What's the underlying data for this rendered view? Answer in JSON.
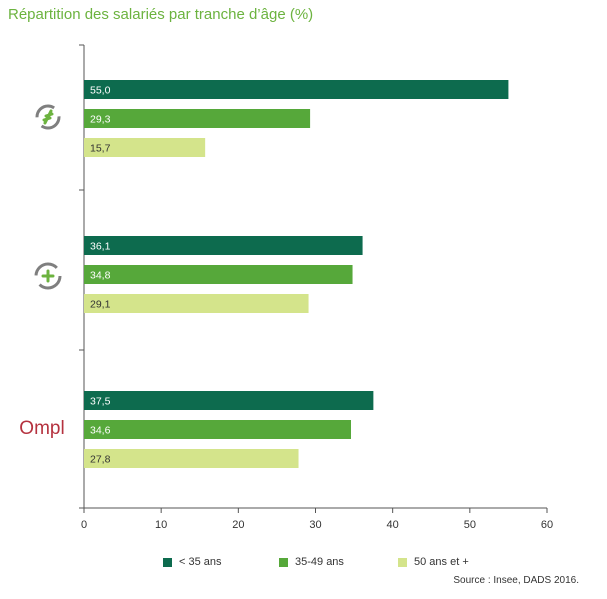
{
  "chart_data": {
    "type": "bar",
    "orientation": "horizontal",
    "title": "Répartition des salariés par tranche d’âge (%)",
    "categories": [
      "logo-recycle",
      "logo-plus",
      "Ompl"
    ],
    "series": [
      {
        "name": "< 35 ans",
        "color": "#0d6b4e",
        "values": [
          55.0,
          36.1,
          37.5
        ],
        "labels": [
          "55,0",
          "36,1",
          "37,5"
        ]
      },
      {
        "name": "35-49 ans",
        "color": "#56a83a",
        "values": [
          29.3,
          34.8,
          34.6
        ],
        "labels": [
          "29,3",
          "34,8",
          "34,6"
        ]
      },
      {
        "name": "50 ans et +",
        "color": "#d4e48b",
        "values": [
          15.7,
          29.1,
          27.8
        ],
        "labels": [
          "15,7",
          "29,1",
          "27,8"
        ]
      }
    ],
    "xlim": [
      0,
      60
    ],
    "x_ticks": [
      "0",
      "10",
      "20",
      "30",
      "40",
      "50",
      "60"
    ],
    "grid": false,
    "legend_position": "bottom",
    "source": "Source : Insee, DADS 2016."
  },
  "groups": {
    "ompl_logo_text": "Ompl",
    "ompl_color": "#b5323f"
  }
}
